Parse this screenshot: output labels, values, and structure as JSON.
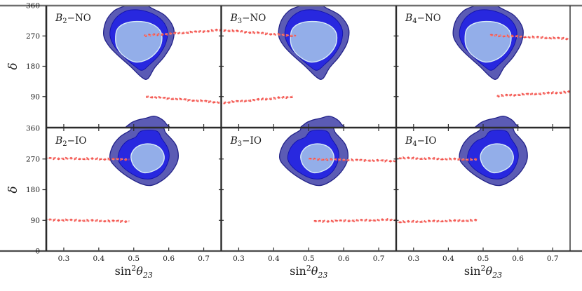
{
  "figure": {
    "background": "#ffffff",
    "spine_color": "#2b2b2b",
    "top_spine_color": "#6e6e6e",
    "bottom_spine_color": "#4a4a4a",
    "tick_label_color": "#1a1a1a"
  },
  "chart_data": {
    "type": "heatmap",
    "subtype": "contour-grid",
    "rows": 2,
    "cols": 3,
    "x_axis": {
      "label_parts": {
        "fn": "sin",
        "sup": "2",
        "var": "θ",
        "sub": "23"
      },
      "range": [
        0.25,
        0.75
      ],
      "tick_values": [
        0.3,
        0.4,
        0.5,
        0.6,
        0.7
      ],
      "tick_labels": [
        "0.3",
        "0.4",
        "0.5",
        "0.6",
        "0.7"
      ]
    },
    "y_axis": {
      "label": "δ",
      "range": [
        0,
        360
      ],
      "tick_step": 90,
      "ticks_top_row": [
        "360",
        "270",
        "180",
        "90"
      ],
      "ticks_top_row_values": [
        360,
        270,
        180,
        90
      ],
      "ticks_bottom_row": [
        "360",
        "270",
        "180",
        "90",
        "0"
      ],
      "ticks_bottom_row_values": [
        360,
        270,
        180,
        90,
        0
      ]
    },
    "levels": [
      {
        "name": "outer-3sigma",
        "fill": "#5B5BB4",
        "stroke": "#222288",
        "stroke_width": 1.3
      },
      {
        "name": "middle-2sigma",
        "fill": "#2828DF",
        "stroke": "#1414AE",
        "stroke_width": 1.0
      },
      {
        "name": "inner-1sigma",
        "fill": "#93AEE9",
        "stroke": "#D9ECF8",
        "stroke_width": 1.4
      }
    ],
    "red_line_style": {
      "color": "#F2534D",
      "highlight": "#F8837D"
    },
    "shapes": {
      "NO": {
        "outer": [
          [
            0.414,
            272
          ],
          [
            0.42,
            312
          ],
          [
            0.443,
            344
          ],
          [
            0.472,
            358
          ],
          [
            0.488,
            365
          ],
          [
            0.528,
            365
          ],
          [
            0.552,
            352
          ],
          [
            0.59,
            330
          ],
          [
            0.614,
            292
          ],
          [
            0.61,
            250
          ],
          [
            0.588,
            210
          ],
          [
            0.56,
            176
          ],
          [
            0.54,
            143
          ],
          [
            0.522,
            148
          ],
          [
            0.49,
            180
          ],
          [
            0.452,
            215
          ],
          [
            0.428,
            242
          ]
        ],
        "middle": [
          [
            0.432,
            272
          ],
          [
            0.438,
            305
          ],
          [
            0.458,
            332
          ],
          [
            0.49,
            347
          ],
          [
            0.535,
            343
          ],
          [
            0.575,
            322
          ],
          [
            0.596,
            288
          ],
          [
            0.592,
            250
          ],
          [
            0.572,
            213
          ],
          [
            0.545,
            185
          ],
          [
            0.524,
            168
          ],
          [
            0.503,
            180
          ],
          [
            0.468,
            212
          ],
          [
            0.444,
            240
          ]
        ],
        "inner": [
          [
            0.448,
            258
          ],
          [
            0.452,
            288
          ],
          [
            0.472,
            306
          ],
          [
            0.508,
            313
          ],
          [
            0.548,
            307
          ],
          [
            0.575,
            286
          ],
          [
            0.58,
            255
          ],
          [
            0.567,
            225
          ],
          [
            0.538,
            200
          ],
          [
            0.503,
            193
          ],
          [
            0.47,
            212
          ],
          [
            0.453,
            235
          ]
        ],
        "extra_outer": [
          [
            [
              0.483,
              -8
            ],
            [
              0.49,
              10
            ],
            [
              0.51,
              20
            ],
            [
              0.535,
              26
            ],
            [
              0.558,
              32
            ],
            [
              0.578,
              24
            ],
            [
              0.592,
              10
            ],
            [
              0.596,
              -8
            ]
          ]
        ]
      },
      "IO": {
        "outer": [
          [
            0.432,
            272
          ],
          [
            0.44,
            308
          ],
          [
            0.462,
            336
          ],
          [
            0.49,
            354
          ],
          [
            0.5,
            366
          ],
          [
            0.575,
            368
          ],
          [
            0.592,
            346
          ],
          [
            0.62,
            312
          ],
          [
            0.627,
            272
          ],
          [
            0.612,
            238
          ],
          [
            0.585,
            210
          ],
          [
            0.552,
            193
          ],
          [
            0.522,
            197
          ],
          [
            0.483,
            218
          ],
          [
            0.45,
            245
          ]
        ],
        "middle": [
          [
            0.455,
            272
          ],
          [
            0.462,
            300
          ],
          [
            0.48,
            322
          ],
          [
            0.505,
            334
          ],
          [
            0.522,
            352
          ],
          [
            0.565,
            352
          ],
          [
            0.58,
            330
          ],
          [
            0.598,
            300
          ],
          [
            0.6,
            268
          ],
          [
            0.582,
            232
          ],
          [
            0.553,
            213
          ],
          [
            0.52,
            214
          ],
          [
            0.486,
            232
          ],
          [
            0.464,
            252
          ]
        ],
        "inner": [
          [
            0.492,
            275
          ],
          [
            0.5,
            297
          ],
          [
            0.52,
            311
          ],
          [
            0.548,
            314
          ],
          [
            0.575,
            302
          ],
          [
            0.587,
            278
          ],
          [
            0.58,
            253
          ],
          [
            0.558,
            236
          ],
          [
            0.528,
            230
          ],
          [
            0.502,
            248
          ]
        ],
        "extra_outer": []
      }
    },
    "panels": [
      {
        "row": 0,
        "col": 0,
        "label": {
          "base": "B",
          "sub": "2",
          "sep": "−",
          "mode": "NO"
        },
        "shape": "NO",
        "dx": 0,
        "red_lines": [
          [
            [
              0.53,
              271
            ],
            [
              0.755,
              288
            ]
          ],
          [
            [
              0.535,
              90
            ],
            [
              0.755,
              72
            ]
          ]
        ]
      },
      {
        "row": 0,
        "col": 1,
        "label": {
          "base": "B",
          "sub": "3",
          "sep": "−",
          "mode": "NO"
        },
        "shape": "NO",
        "dx": 0,
        "red_lines": [
          [
            [
              0.245,
              288
            ],
            [
              0.463,
              270
            ]
          ],
          [
            [
              0.245,
              71
            ],
            [
              0.458,
              90
            ]
          ]
        ]
      },
      {
        "row": 0,
        "col": 2,
        "label": {
          "base": "B",
          "sub": "4",
          "sep": "−",
          "mode": "NO"
        },
        "shape": "NO",
        "dx": 0,
        "red_lines": [
          [
            [
              0.52,
              272
            ],
            [
              0.755,
              261
            ]
          ],
          [
            [
              0.54,
              92
            ],
            [
              0.755,
              104
            ]
          ]
        ]
      },
      {
        "row": 1,
        "col": 0,
        "label": {
          "base": "B",
          "sub": "2",
          "sep": "−",
          "mode": "IO"
        },
        "shape": "IO",
        "dx": 0,
        "red_lines": [
          [
            [
              0.245,
              272
            ],
            [
              0.487,
              269
            ]
          ],
          [
            [
              0.245,
              92
            ],
            [
              0.487,
              87
            ]
          ]
        ]
      },
      {
        "row": 1,
        "col": 1,
        "label": {
          "base": "B",
          "sub": "3",
          "sep": "−",
          "mode": "IO"
        },
        "shape": "IO",
        "dx": -0.015,
        "red_lines": [
          [
            [
              0.5,
              270
            ],
            [
              0.755,
              264
            ]
          ],
          [
            [
              0.515,
              87
            ],
            [
              0.755,
              92
            ]
          ]
        ]
      },
      {
        "row": 1,
        "col": 2,
        "label": {
          "base": "B",
          "sub": "4",
          "sep": "−",
          "mode": "IO"
        },
        "shape": "IO",
        "dx": 0,
        "red_lines": [
          [
            [
              0.245,
              273
            ],
            [
              0.483,
              268
            ]
          ],
          [
            [
              0.245,
              85
            ],
            [
              0.483,
              90
            ]
          ]
        ]
      }
    ]
  }
}
